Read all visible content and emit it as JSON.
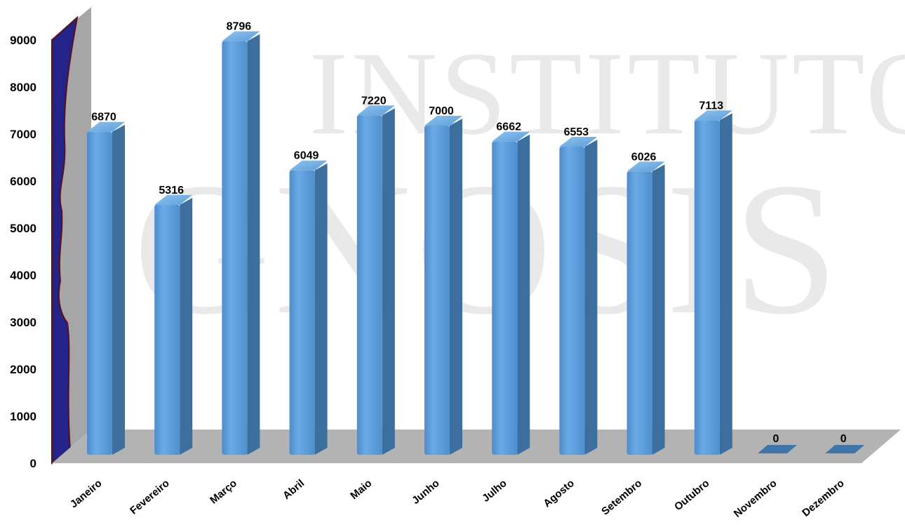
{
  "watermark": {
    "line1": "INSTITUTO",
    "line2": "GNOSIS"
  },
  "chart_data": {
    "type": "bar",
    "title": "",
    "xlabel": "",
    "ylabel": "",
    "ylim": [
      0,
      9000
    ],
    "yticks": [
      0,
      1000,
      2000,
      3000,
      4000,
      5000,
      6000,
      7000,
      8000,
      9000
    ],
    "categories": [
      "Janeiro",
      "Fevereiro",
      "Março",
      "Abril",
      "Maio",
      "Junho",
      "Julho",
      "Agosto",
      "Setembro",
      "Outubro",
      "Novembro",
      "Dezembro"
    ],
    "values": [
      6870,
      5316,
      8796,
      6049,
      7220,
      7000,
      6662,
      6553,
      6026,
      7113,
      0,
      0
    ],
    "grid": false,
    "legend": "none",
    "style": "3d-cylinder",
    "colors": {
      "bar": "#5b9bd5",
      "bar_dark": "#3f6f9c",
      "wall": "#a6a6a6",
      "floor": "#b3b3b3",
      "side_wall": "#2b2b8c"
    }
  }
}
